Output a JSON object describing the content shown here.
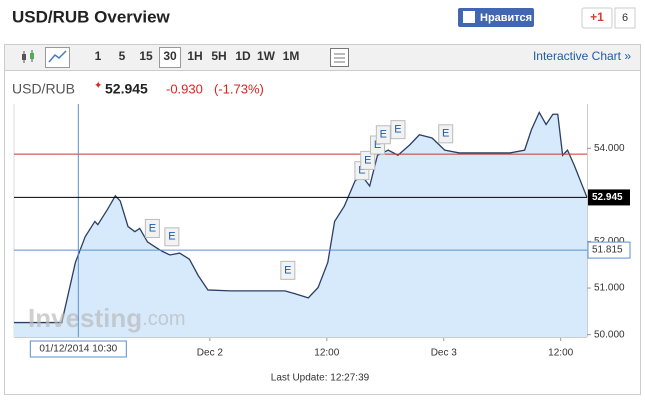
{
  "header": {
    "title": "USD/RUB Overview",
    "like": "Нравится",
    "gplus": "+1",
    "gplus_count": "6"
  },
  "toolbar": {
    "buttons": [
      "1",
      "5",
      "15",
      "30",
      "1H",
      "5H",
      "1D",
      "1W",
      "1M"
    ],
    "selected": "30",
    "interactive": "Interactive Chart »"
  },
  "quote": {
    "symbol": "USD/RUB",
    "price": "52.945",
    "change": "-0.930",
    "change_pct": "(-1.73%)"
  },
  "watermark": {
    "brand": "Investing",
    ".com": ".com"
  },
  "footer": "Last Update: 12:27:39",
  "chart_data": {
    "type": "area",
    "color": "#2b3f66",
    "fill": "#d7eafc",
    "x": [
      3.9,
      8.8,
      10.2,
      11.2,
      12.2,
      12.5,
      13.5,
      14.3,
      14.8,
      15.6,
      16.3,
      16.8,
      17.6,
      18.4,
      19.1,
      19.9,
      20.9,
      21.9,
      22.8,
      23.8,
      26.1,
      31.7,
      32.7,
      34.1,
      35.1,
      36.1,
      36.8,
      37.8,
      38.9,
      39.6,
      40.4,
      41.2,
      42.3,
      43.3,
      44.5,
      45.5,
      46.8,
      48.1,
      49.6,
      51.7,
      54.8,
      56.3,
      57.0,
      57.8,
      58.5,
      59.2,
      59.7,
      60.2,
      60.7,
      61.4,
      62.7
    ],
    "values": [
      50.26,
      50.26,
      51.55,
      52.1,
      52.43,
      52.36,
      52.69,
      52.98,
      52.87,
      52.32,
      52.21,
      52.28,
      51.99,
      51.88,
      51.79,
      51.71,
      51.75,
      51.62,
      51.27,
      50.96,
      50.94,
      50.94,
      50.88,
      50.79,
      51.01,
      51.55,
      52.43,
      52.76,
      53.3,
      53.41,
      53.19,
      53.85,
      53.96,
      53.85,
      54.07,
      54.29,
      54.22,
      53.96,
      53.9,
      53.9,
      53.9,
      53.96,
      54.4,
      54.77,
      54.51,
      54.73,
      54.73,
      53.85,
      53.96,
      53.63,
      52.945
    ],
    "xlim": [
      3.9,
      62.7
    ],
    "ylim": [
      49.95,
      54.95
    ],
    "xticks": [
      {
        "value": 24,
        "label": "Dec 2"
      },
      {
        "value": 36,
        "label": "12:00"
      },
      {
        "value": 48,
        "label": "Dec 3"
      },
      {
        "value": 60,
        "label": "12:00"
      }
    ],
    "yticks": [
      {
        "value": 50,
        "label": "50.000"
      },
      {
        "value": 51,
        "label": "51.000"
      },
      {
        "value": 52,
        "label": "52.000"
      },
      {
        "value": 54,
        "label": "54.000"
      }
    ],
    "previous_close": 53.875,
    "last_value": 52.945,
    "crosshair": {
      "x": 10.5,
      "label": "01/12/2014 10:30",
      "value": 51.815
    },
    "events": [
      {
        "x": 18.1,
        "value": 52.28,
        "label": "E"
      },
      {
        "x": 20.1,
        "value": 52.1,
        "label": "E"
      },
      {
        "x": 32.0,
        "value": 51.38,
        "label": "E"
      },
      {
        "x": 39.6,
        "value": 53.52,
        "label": "E"
      },
      {
        "x": 40.2,
        "value": 53.74,
        "label": "E"
      },
      {
        "x": 41.2,
        "value": 54.07,
        "label": "E"
      },
      {
        "x": 41.8,
        "value": 54.29,
        "label": "E"
      },
      {
        "x": 43.3,
        "value": 54.4,
        "label": "E"
      },
      {
        "x": 48.2,
        "value": 54.31,
        "label": "E"
      }
    ]
  }
}
